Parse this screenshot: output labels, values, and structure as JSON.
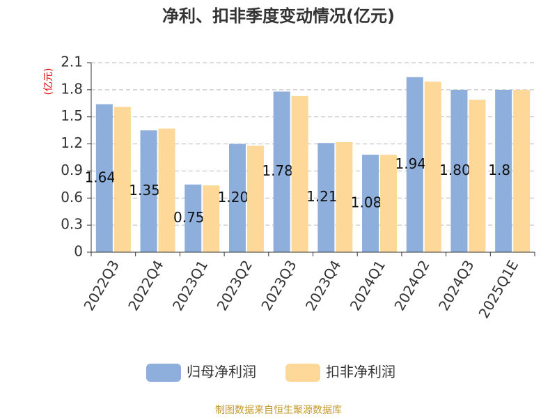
{
  "chart_data": {
    "type": "bar",
    "title": "净利、扣非季度变动情况(亿元)",
    "y_label": "(亿元)",
    "categories": [
      "2022Q3",
      "2022Q4",
      "2023Q1",
      "2023Q2",
      "2023Q3",
      "2023Q4",
      "2024Q1",
      "2024Q2",
      "2024Q3",
      "2025Q1E"
    ],
    "series": [
      {
        "name": "归母净利润",
        "color": "#8eaedb",
        "values": [
          1.64,
          1.35,
          0.75,
          1.2,
          1.78,
          1.21,
          1.08,
          1.94,
          1.8,
          1.8
        ],
        "value_labels": [
          "1.64",
          "1.35",
          "0.75",
          "1.20",
          "1.78",
          "1.21",
          "1.08",
          "1.94",
          "1.80",
          "1.8"
        ]
      },
      {
        "name": "扣非净利润",
        "color": "#fed898",
        "values": [
          1.61,
          1.37,
          0.74,
          1.18,
          1.73,
          1.22,
          1.08,
          1.89,
          1.69,
          1.8
        ]
      }
    ],
    "ylim": [
      0,
      2.1
    ],
    "yticks": [
      0,
      0.3,
      0.6,
      0.9,
      1.2,
      1.5,
      1.8,
      2.1
    ],
    "grid": true,
    "source": "制图数据来自恒生聚源数据库"
  }
}
